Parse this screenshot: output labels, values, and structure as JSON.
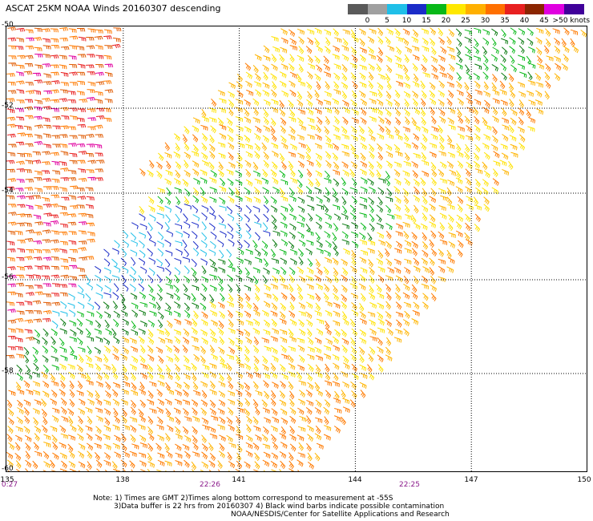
{
  "title": "ASCAT 25KM NOAA Winds 20160307 descending",
  "legend": {
    "labels": [
      "0",
      "5",
      "10",
      "15",
      "20",
      "25",
      "30",
      "35",
      "40",
      "45",
      ">50 knots"
    ],
    "colors": [
      "#5a5a5a",
      "#a0a0a0",
      "#1fbfe8",
      "#1b2cc8",
      "#08b818",
      "#ffe800",
      "#ffb000",
      "#ff7000",
      "#e82020",
      "#8b2500",
      "#e000e0",
      "#40009a"
    ]
  },
  "map": {
    "lat_labels": [
      "-50",
      "-52",
      "-54",
      "-56",
      "-58",
      "-60"
    ],
    "lon_labels": [
      "135",
      "138",
      "141",
      "144",
      "147",
      "150"
    ],
    "time_labels": [
      "0:27",
      "22:26",
      "22:25"
    ],
    "lat_range": [
      -60,
      -50
    ],
    "lon_range": [
      135,
      150
    ]
  },
  "chart_data": {
    "type": "scatter",
    "title": "ASCAT 25KM NOAA Winds 20160307 descending",
    "x_ticks": [
      "135",
      "138",
      "141",
      "144",
      "147",
      "150"
    ],
    "y_ticks": [
      "-50",
      "-52",
      "-54",
      "-56",
      "-58",
      "-60"
    ],
    "xlim": [
      135,
      150
    ],
    "ylim": [
      -60,
      -50
    ],
    "grid": true,
    "legend_placement": "top-right",
    "swaths": [
      {
        "name": "left swath (partial)",
        "lon_range": [
          135,
          137.8
        ],
        "speed_knots": "25-40"
      },
      {
        "name": "main swath",
        "lon_range": [
          135.5,
          150
        ],
        "speed_knots": "5-35"
      }
    ],
    "features": [
      {
        "region": "core 55-57S, 136.5-141E",
        "speed_knots": "5-20"
      },
      {
        "region": "band 54-57.5S, 136-145E",
        "speed_knots": "15-20"
      },
      {
        "region": "outer areas",
        "speed_knots": "20-35"
      }
    ]
  },
  "note": {
    "line1": "Note: 1) Times are GMT 2)Times along bottom correspond to measurement at -55S",
    "line2": "3)Data buffer is 22 hrs from 20160307 4) Black wind barbs indicate possible contamination",
    "line3": "NOAA/NESDIS/Center for Satellite Applications and Research"
  }
}
